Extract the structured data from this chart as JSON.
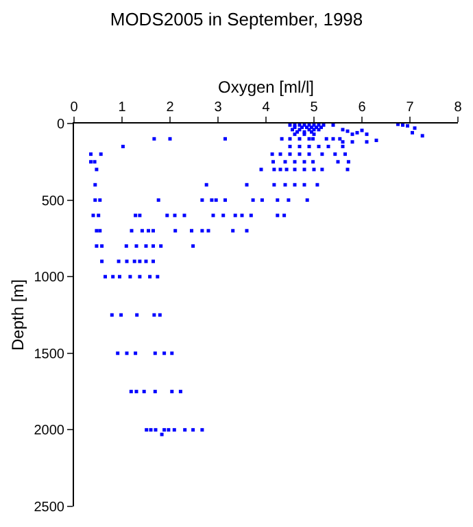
{
  "chart_data": {
    "type": "scatter",
    "title": "MODS2005 in September, 1998",
    "xlabel": "Oxygen [ml/l]",
    "ylabel": "Depth [m]",
    "xlim": [
      0,
      8
    ],
    "xticks": [
      0,
      1,
      2,
      3,
      4,
      5,
      6,
      7,
      8
    ],
    "ylim": [
      2500,
      0
    ],
    "yticks": [
      0,
      500,
      1000,
      1500,
      2000,
      2500
    ],
    "marker": "square",
    "series": [
      {
        "color": "#0000ff",
        "x": [
          4.5,
          4.6,
          4.7,
          4.8,
          4.9,
          5.0,
          5.1,
          5.2,
          4.6,
          4.75,
          4.85,
          4.95,
          5.05,
          5.15,
          5.4,
          4.55,
          4.7,
          4.9,
          5.0,
          5.1,
          4.65,
          4.8,
          4.95,
          5.6,
          5.7,
          5.9,
          6.0,
          6.75,
          6.85,
          6.95,
          7.1,
          4.6,
          4.8,
          5.0,
          5.8,
          6.1,
          7.05,
          7.26,
          1.67,
          2.0,
          3.15,
          4.33,
          4.5,
          4.7,
          4.9,
          4.98,
          5.26,
          5.4,
          5.54,
          5.6,
          5.8,
          6.1,
          6.3,
          1.02,
          4.5,
          4.7,
          4.9,
          5.1,
          5.3,
          5.6,
          0.35,
          0.56,
          4.13,
          4.3,
          4.5,
          4.7,
          4.9,
          5.17,
          5.44,
          5.65,
          0.35,
          0.43,
          4.15,
          4.4,
          4.6,
          4.8,
          4.98,
          5.5,
          5.72,
          0.47,
          3.9,
          4.17,
          4.3,
          4.43,
          4.6,
          4.8,
          5.0,
          5.17,
          5.7,
          0.44,
          2.76,
          3.6,
          4.17,
          4.4,
          4.6,
          4.8,
          5.07,
          0.44,
          0.54,
          1.76,
          2.67,
          2.87,
          2.96,
          3.15,
          3.73,
          3.92,
          4.24,
          4.47,
          4.86,
          0.4,
          0.51,
          1.28,
          1.37,
          1.94,
          2.1,
          2.3,
          2.9,
          3.11,
          3.36,
          3.5,
          3.69,
          4.24,
          4.38,
          0.47,
          0.54,
          1.2,
          1.42,
          1.55,
          1.65,
          2.11,
          2.45,
          2.67,
          2.8,
          3.31,
          3.6,
          0.47,
          0.58,
          1.09,
          1.3,
          1.5,
          1.65,
          1.81,
          2.48,
          0.58,
          0.93,
          1.1,
          1.26,
          1.37,
          1.5,
          1.65,
          0.65,
          0.81,
          0.95,
          1.17,
          1.37,
          1.58,
          1.74,
          0.79,
          0.98,
          1.31,
          1.67,
          1.79,
          0.91,
          1.1,
          1.28,
          1.69,
          1.88,
          2.04,
          1.19,
          1.3,
          1.46,
          1.69,
          2.04,
          2.22,
          1.51,
          1.6,
          1.7,
          1.88,
          1.83,
          1.97,
          2.09,
          2.31,
          2.48,
          2.67
        ],
        "values": [
          10,
          10,
          10,
          10,
          10,
          10,
          10,
          10,
          25,
          25,
          25,
          25,
          25,
          25,
          10,
          40,
          40,
          40,
          40,
          40,
          55,
          55,
          55,
          40,
          50,
          60,
          45,
          5,
          10,
          15,
          30,
          70,
          70,
          70,
          70,
          70,
          60,
          80,
          100,
          100,
          100,
          100,
          100,
          100,
          100,
          100,
          100,
          100,
          100,
          120,
          120,
          120,
          110,
          150,
          150,
          150,
          150,
          150,
          150,
          150,
          200,
          200,
          200,
          200,
          200,
          200,
          200,
          200,
          200,
          200,
          250,
          250,
          250,
          250,
          250,
          250,
          250,
          250,
          250,
          300,
          300,
          300,
          300,
          300,
          300,
          300,
          300,
          300,
          300,
          400,
          400,
          400,
          400,
          400,
          400,
          400,
          400,
          500,
          500,
          500,
          500,
          500,
          500,
          500,
          500,
          500,
          500,
          500,
          500,
          600,
          600,
          600,
          600,
          600,
          600,
          600,
          600,
          600,
          600,
          600,
          600,
          600,
          600,
          700,
          700,
          700,
          700,
          700,
          700,
          700,
          700,
          700,
          700,
          700,
          700,
          800,
          800,
          800,
          800,
          800,
          800,
          800,
          800,
          900,
          900,
          900,
          900,
          900,
          900,
          900,
          1000,
          1000,
          1000,
          1000,
          1000,
          1000,
          1000,
          1250,
          1250,
          1250,
          1250,
          1250,
          1500,
          1500,
          1500,
          1500,
          1500,
          1500,
          1750,
          1750,
          1750,
          1750,
          1750,
          1750,
          2000,
          2000,
          2000,
          2000,
          2030,
          2000,
          2000,
          2000,
          2000,
          2000
        ]
      }
    ]
  }
}
